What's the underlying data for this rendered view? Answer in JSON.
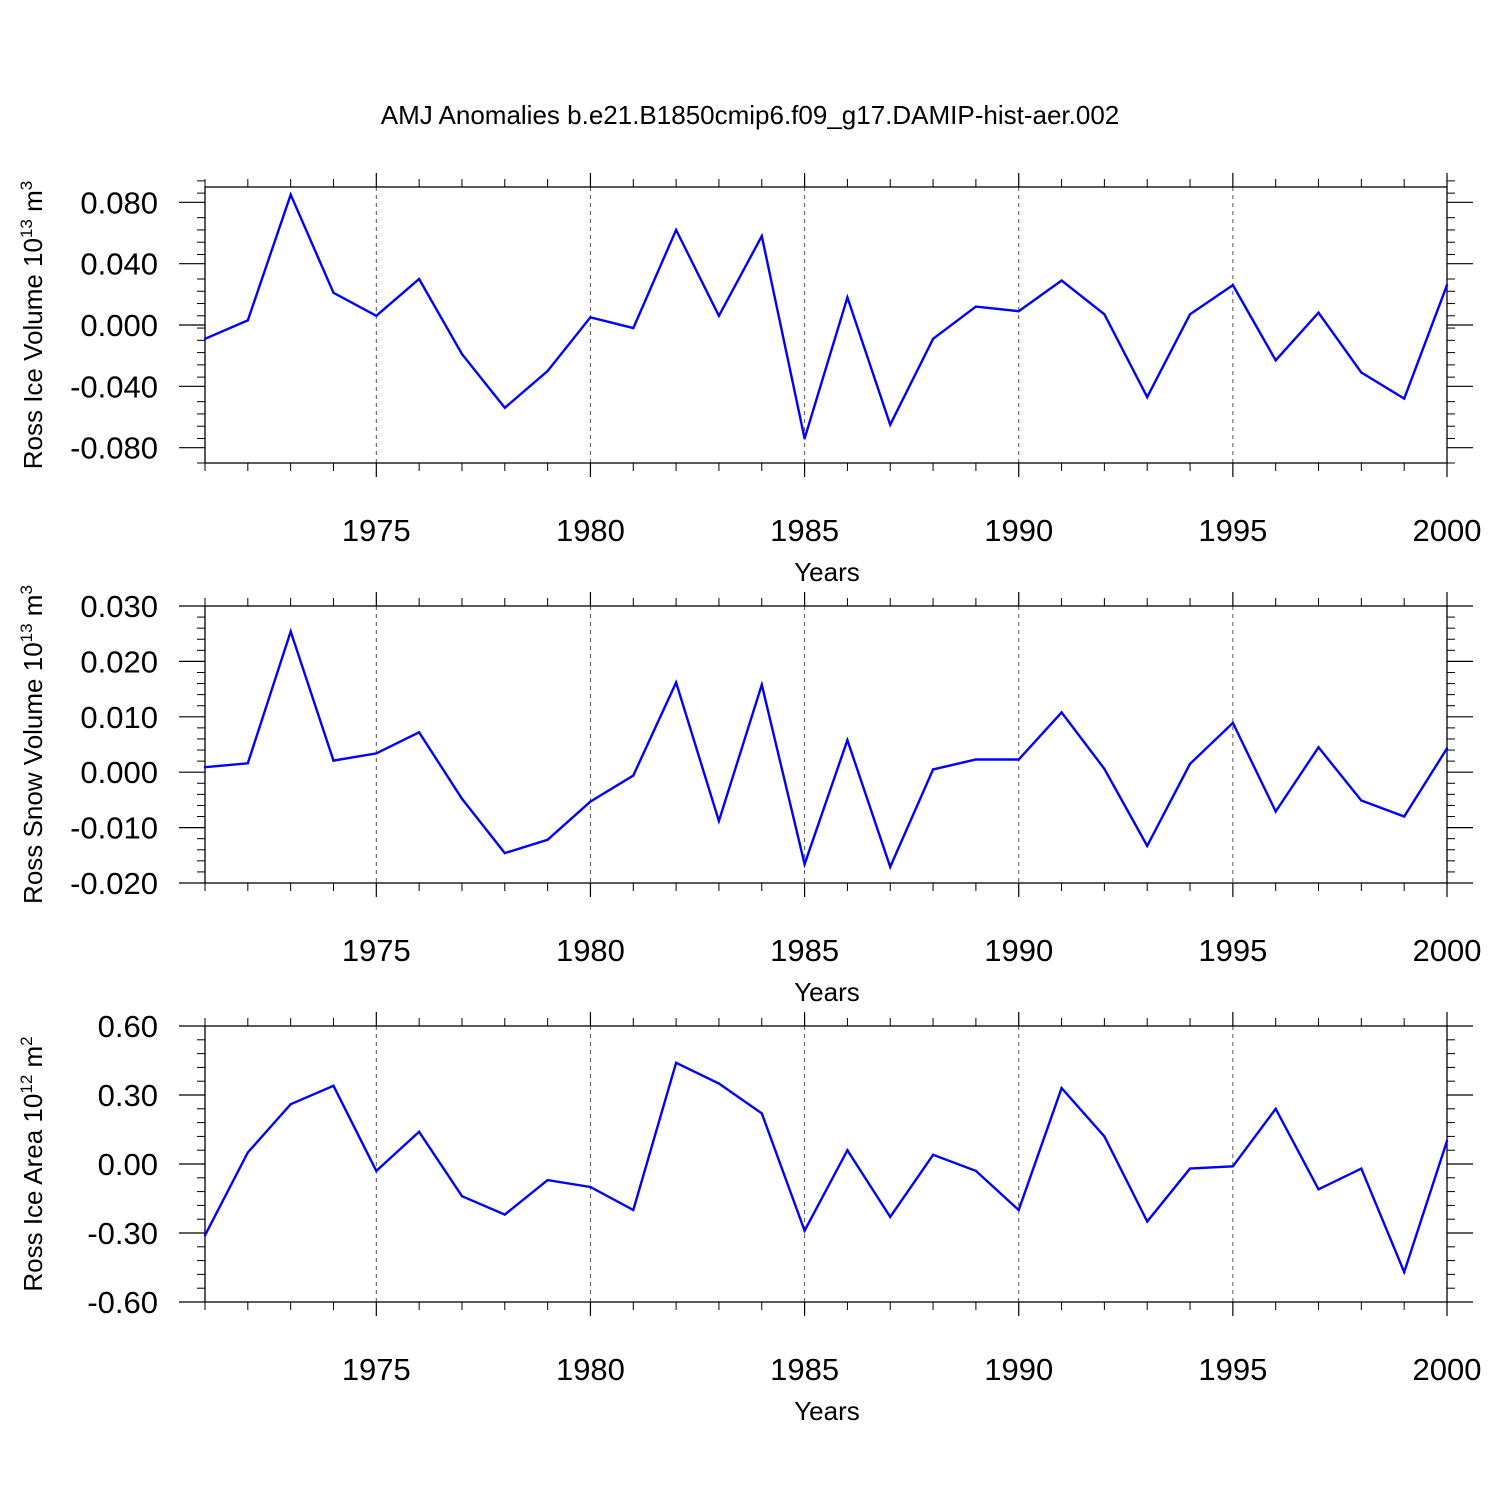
{
  "title": "AMJ Anomalies b.e21.B1850cmip6.f09_g17.DAMIP-hist-aer.002",
  "line_color": "#0000ff",
  "chart_data": [
    {
      "type": "line",
      "ylabel_main": "Ross Ice Volume 10",
      "ylabel_exp": "13",
      "ylabel_unit": " m",
      "ylabel_unit_exp": "3",
      "xlabel": "Years",
      "x": [
        1971,
        1972,
        1973,
        1974,
        1975,
        1976,
        1977,
        1978,
        1979,
        1980,
        1981,
        1982,
        1983,
        1984,
        1985,
        1986,
        1987,
        1988,
        1989,
        1990,
        1991,
        1992,
        1993,
        1994,
        1995,
        1996,
        1997,
        1998,
        1999,
        2000
      ],
      "values": [
        -0.009,
        0.003,
        0.085,
        0.021,
        0.006,
        0.03,
        -0.019,
        -0.054,
        -0.03,
        0.005,
        -0.002,
        0.062,
        0.006,
        0.058,
        -0.074,
        0.018,
        -0.065,
        -0.009,
        0.012,
        0.009,
        0.029,
        0.007,
        -0.047,
        0.007,
        0.026,
        -0.023,
        0.008,
        -0.031,
        -0.048,
        0.026
      ],
      "xlim": [
        1971,
        2000
      ],
      "ylim": [
        -0.09,
        0.09
      ],
      "yticks": [
        -0.08,
        -0.04,
        0.0,
        0.04,
        0.08
      ],
      "ytick_labels": [
        "-0.080",
        "-0.040",
        "0.000",
        "0.040",
        "0.080"
      ],
      "yminor_step": 0.008,
      "xticks": [
        1975,
        1980,
        1985,
        1990,
        1995,
        2000
      ],
      "xtick_labels": [
        "1975",
        "1980",
        "1985",
        "1990",
        "1995",
        "2000"
      ]
    },
    {
      "type": "line",
      "ylabel_main": "Ross Snow Volume 10",
      "ylabel_exp": "13",
      "ylabel_unit": " m",
      "ylabel_unit_exp": "3",
      "xlabel": "Years",
      "x": [
        1971,
        1972,
        1973,
        1974,
        1975,
        1976,
        1977,
        1978,
        1979,
        1980,
        1981,
        1982,
        1983,
        1984,
        1985,
        1986,
        1987,
        1988,
        1989,
        1990,
        1991,
        1992,
        1993,
        1994,
        1995,
        1996,
        1997,
        1998,
        1999,
        2000
      ],
      "values": [
        0.0009,
        0.0016,
        0.0254,
        0.0021,
        0.0034,
        0.0072,
        -0.0048,
        -0.0146,
        -0.0122,
        -0.0053,
        -0.0006,
        0.0162,
        -0.0088,
        0.0158,
        -0.0166,
        0.0058,
        -0.0171,
        0.0005,
        0.0023,
        0.0023,
        0.0108,
        0.0006,
        -0.0133,
        0.0015,
        0.0089,
        -0.0071,
        0.0045,
        -0.0051,
        -0.008,
        0.0043
      ],
      "xlim": [
        1971,
        2000
      ],
      "ylim": [
        -0.02,
        0.03
      ],
      "yticks": [
        -0.02,
        -0.01,
        0.0,
        0.01,
        0.02,
        0.03
      ],
      "ytick_labels": [
        "-0.020",
        "-0.010",
        "0.000",
        "0.010",
        "0.020",
        "0.030"
      ],
      "yminor_step": 0.002,
      "xticks": [
        1975,
        1980,
        1985,
        1990,
        1995,
        2000
      ],
      "xtick_labels": [
        "1975",
        "1980",
        "1985",
        "1990",
        "1995",
        "2000"
      ]
    },
    {
      "type": "line",
      "ylabel_main": "Ross Ice Area 10",
      "ylabel_exp": "12",
      "ylabel_unit": " m",
      "ylabel_unit_exp": "2",
      "xlabel": "Years",
      "x": [
        1971,
        1972,
        1973,
        1974,
        1975,
        1976,
        1977,
        1978,
        1979,
        1980,
        1981,
        1982,
        1983,
        1984,
        1985,
        1986,
        1987,
        1988,
        1989,
        1990,
        1991,
        1992,
        1993,
        1994,
        1995,
        1996,
        1997,
        1998,
        1999,
        2000
      ],
      "values": [
        -0.31,
        0.05,
        0.26,
        0.34,
        -0.03,
        0.14,
        -0.14,
        -0.22,
        -0.07,
        -0.1,
        -0.2,
        0.44,
        0.35,
        0.22,
        -0.29,
        0.06,
        -0.23,
        0.04,
        -0.03,
        -0.2,
        0.33,
        0.12,
        -0.25,
        -0.02,
        -0.01,
        0.24,
        -0.11,
        -0.02,
        -0.47,
        0.1
      ],
      "xlim": [
        1971,
        2000
      ],
      "ylim": [
        -0.6,
        0.6
      ],
      "yticks": [
        -0.6,
        -0.3,
        0.0,
        0.3,
        0.6
      ],
      "ytick_labels": [
        "-0.60",
        "-0.30",
        "0.00",
        "0.30",
        "0.60"
      ],
      "yminor_step": 0.06,
      "xticks": [
        1975,
        1980,
        1985,
        1990,
        1995,
        2000
      ],
      "xtick_labels": [
        "1975",
        "1980",
        "1985",
        "1990",
        "1995",
        "2000"
      ]
    }
  ]
}
